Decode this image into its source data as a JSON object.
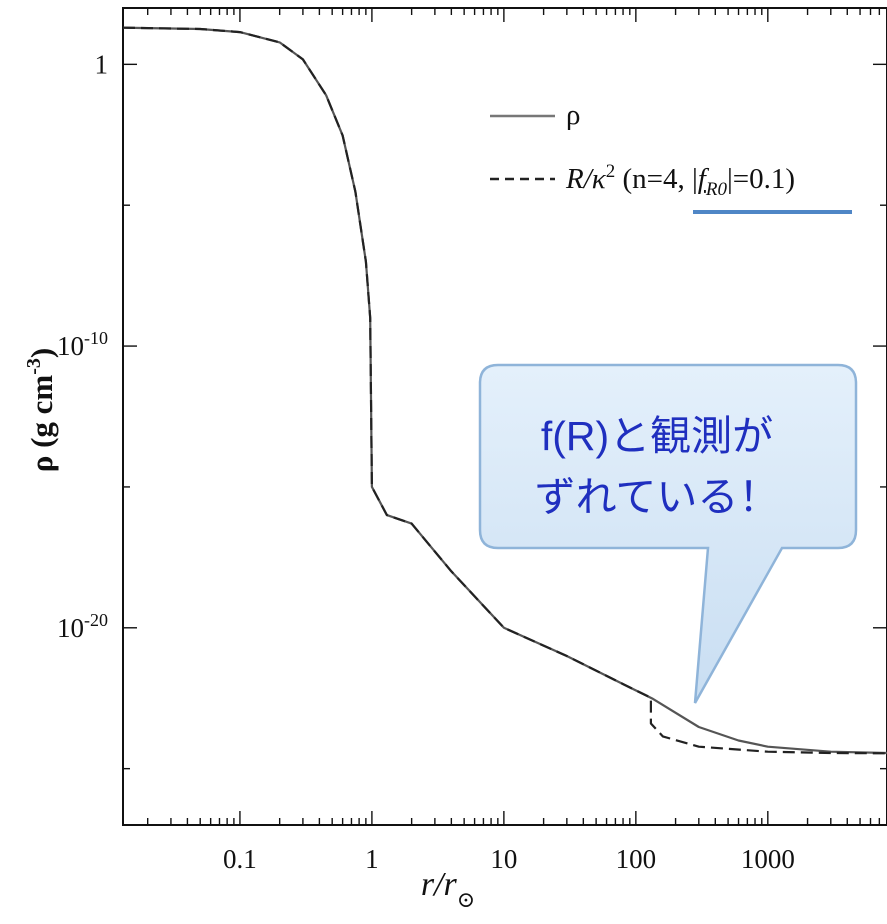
{
  "chart_data": {
    "type": "line",
    "xlabel": {
      "main": "r/r",
      "sub": "⊙"
    },
    "ylabel": {
      "main": "ρ (g cm",
      "sup": "-3",
      "close": ")"
    },
    "x_scale": "log",
    "y_scale": "log",
    "xlim": [
      0.013,
      8000
    ],
    "ylim": [
      1e-27,
      100.0
    ],
    "x_ticks": [
      {
        "value": 0.1,
        "label": "0.1"
      },
      {
        "value": 1,
        "label": "1"
      },
      {
        "value": 10,
        "label": "10"
      },
      {
        "value": 100,
        "label": "100"
      },
      {
        "value": 1000,
        "label": "1000"
      }
    ],
    "y_ticks": [
      {
        "value": 1,
        "base": "1",
        "exp": ""
      },
      {
        "value": 1e-10,
        "base": "10",
        "exp": "-10"
      },
      {
        "value": 1e-20,
        "base": "10",
        "exp": "-20"
      }
    ],
    "series": [
      {
        "name": "ρ",
        "style": "solid",
        "color": "#555555",
        "points": [
          [
            0.013,
            20
          ],
          [
            0.05,
            18
          ],
          [
            0.1,
            14
          ],
          [
            0.2,
            6
          ],
          [
            0.3,
            1.5
          ],
          [
            0.45,
            0.08
          ],
          [
            0.6,
            0.003
          ],
          [
            0.75,
            3e-05
          ],
          [
            0.9,
            1e-07
          ],
          [
            0.97,
            1e-09
          ],
          [
            1.0,
            1e-15
          ],
          [
            1.3,
            1e-16
          ],
          [
            2,
            5e-17
          ],
          [
            4,
            1e-18
          ],
          [
            10,
            1e-20
          ],
          [
            30,
            1e-21
          ],
          [
            80,
            1e-22
          ],
          [
            135,
            3e-23
          ],
          [
            300,
            3e-24
          ],
          [
            600,
            1e-24
          ],
          [
            1000,
            6e-25
          ],
          [
            3000,
            4e-25
          ],
          [
            8000,
            3.6e-25
          ]
        ]
      },
      {
        "name": "R/κ² (n=4, |f_R0|=0.1)",
        "style": "dashed",
        "color": "#222222",
        "points": [
          [
            0.013,
            20
          ],
          [
            0.05,
            18
          ],
          [
            0.1,
            14
          ],
          [
            0.2,
            6
          ],
          [
            0.3,
            1.5
          ],
          [
            0.45,
            0.08
          ],
          [
            0.6,
            0.003
          ],
          [
            0.75,
            3e-05
          ],
          [
            0.9,
            1e-07
          ],
          [
            0.97,
            1e-09
          ],
          [
            1.0,
            1e-15
          ],
          [
            1.3,
            1e-16
          ],
          [
            2,
            5e-17
          ],
          [
            4,
            1e-18
          ],
          [
            10,
            1e-20
          ],
          [
            30,
            1e-21
          ],
          [
            80,
            1e-22
          ],
          [
            130,
            3.3e-23
          ],
          [
            130,
            4e-24
          ],
          [
            160,
            1.4e-24
          ],
          [
            300,
            6e-25
          ],
          [
            1000,
            4e-25
          ],
          [
            3000,
            3.6e-25
          ],
          [
            8000,
            3.5e-25
          ]
        ]
      }
    ],
    "legend": {
      "position": "top-right",
      "entries": [
        {
          "style": "solid",
          "label": "ρ"
        },
        {
          "style": "dashed",
          "prefix": "R/κ",
          "sup": "2",
          "mid": " (n=4, |",
          "f": "f",
          "fsub": "R0",
          "suffix": "|=0.1)"
        }
      ]
    },
    "annotation": {
      "lines": [
        "f(R)と観測が",
        "ずれている！"
      ],
      "fill": "#d6e8f7",
      "border": "#8fb4d9",
      "text_color": "#1f2fbf",
      "underline_color": "#4f86c6"
    }
  }
}
